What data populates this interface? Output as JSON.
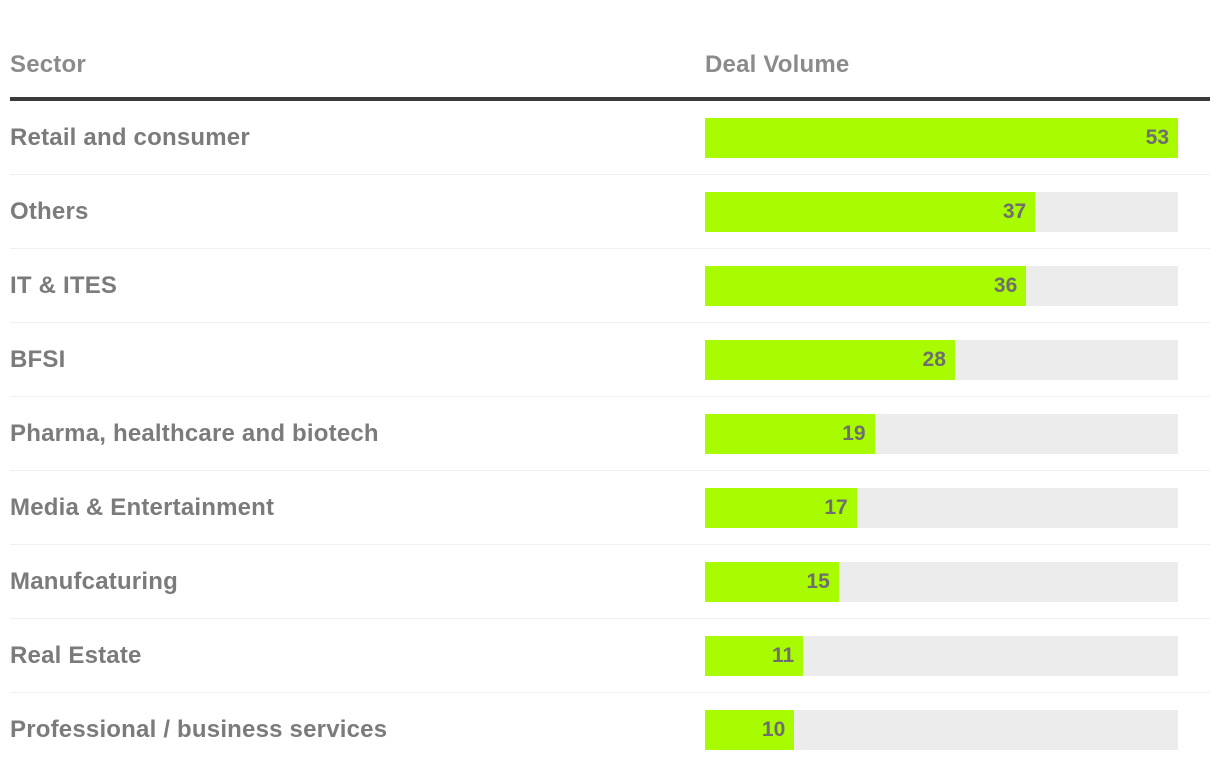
{
  "table": {
    "columns": [
      "Sector",
      "Deal Volume"
    ]
  },
  "chart_data": {
    "type": "bar",
    "orientation": "horizontal",
    "categories": [
      "Retail and consumer",
      "Others",
      "IT & ITES",
      "BFSI",
      "Pharma, healthcare and biotech",
      "Media & Entertainment",
      "Manufcaturing",
      "Real Estate",
      "Professional / business services"
    ],
    "values": [
      53,
      37,
      36,
      28,
      19,
      17,
      15,
      11,
      10
    ],
    "xlabel": "Deal Volume",
    "ylabel": "Sector",
    "xlim": [
      0,
      53
    ],
    "grid": false,
    "legend": false,
    "value_labels_shown": true
  },
  "colors": {
    "bar_fill": "#a8fb00",
    "bar_track": "#ececec",
    "header_rule": "#3b3b3b",
    "row_divider": "#efefef",
    "header_text": "#8b8b8b",
    "label_text": "#7b7b7b",
    "value_text": "#6e6e6e",
    "background": "#ffffff"
  }
}
